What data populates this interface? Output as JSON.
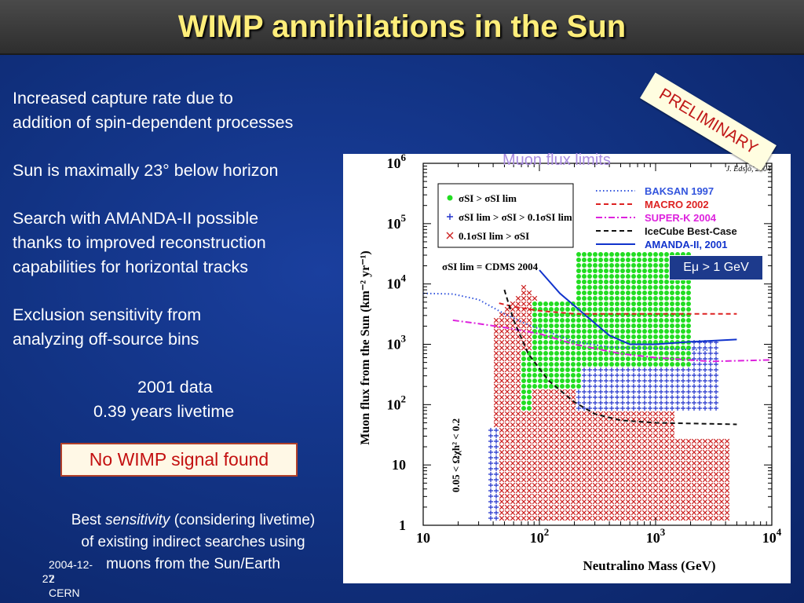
{
  "slide": {
    "title": "WIMP annihilations in the Sun",
    "bullets": [
      [
        "Increased capture rate due to",
        "addition of spin-dependent processes"
      ],
      [
        "Sun is maximally 23° below horizon"
      ],
      [
        "Search with AMANDA-II possible",
        "thanks to improved reconstruction",
        "capabilities for horizontal tracks"
      ],
      [
        "Exclusion sensitivity from",
        "analyzing off-source bins"
      ]
    ],
    "data_period": "2001 data",
    "livetime": "0.39 years livetime",
    "result": "No WIMP signal found",
    "note_prefix": "Best ",
    "note_emph": "sensitivity",
    "note_suffix": " (considering livetime)",
    "note_line2": "of existing indirect searches using",
    "note_line3": "muons from the Sun/Earth",
    "footer_date": "2004-12-2",
    "footer_org": "CERN",
    "page_number": "27",
    "preliminary": "PRELIMINARY",
    "plot_caption": "Muon flux limits",
    "colors": {
      "title": "#ffee7a",
      "background": "#123384",
      "result_text": "#c31010",
      "caption": "#a98be0"
    }
  },
  "chart_data": {
    "type": "scatter",
    "credit": "J. Edsjö, 2004",
    "xlabel": "Neutralino Mass (GeV)",
    "ylabel": "Muon flux from the Sun (km⁻² yr⁻¹)",
    "x_scale": "log",
    "y_scale": "log",
    "xlim": [
      10,
      10000
    ],
    "ylim": [
      1,
      1000000
    ],
    "x_ticks": [
      {
        "v": 10,
        "base": "10",
        "exp": ""
      },
      {
        "v": 100,
        "base": "10",
        "exp": "2"
      },
      {
        "v": 1000,
        "base": "10",
        "exp": "3"
      },
      {
        "v": 10000,
        "base": "10",
        "exp": "4"
      }
    ],
    "y_ticks": [
      {
        "v": 1,
        "base": "1",
        "exp": ""
      },
      {
        "v": 10,
        "base": "10",
        "exp": ""
      },
      {
        "v": 100,
        "base": "10",
        "exp": "2"
      },
      {
        "v": 1000,
        "base": "10",
        "exp": "3"
      },
      {
        "v": 10000,
        "base": "10",
        "exp": "4"
      },
      {
        "v": 100000,
        "base": "10",
        "exp": "5"
      },
      {
        "v": 1000000,
        "base": "10",
        "exp": "6"
      }
    ],
    "model_legend": [
      {
        "marker": "dot",
        "color": "#22dd22",
        "text": "σSI > σSI lim"
      },
      {
        "marker": "plus",
        "color": "#2233cc",
        "text": "σSI lim > σSI > 0.1σSI lim"
      },
      {
        "marker": "cross",
        "color": "#cc2222",
        "text": "0.1σSI lim > σSI"
      }
    ],
    "cdms_label": "σSI lim = CDMS 2004",
    "relic_label": "0.05 < Ωχh² < 0.2",
    "threshold_label": "Eμ > 1 GeV",
    "series": [
      {
        "name": "BAKSAN 1997",
        "color": "#3355dd",
        "dash": "dot",
        "x": [
          10,
          18,
          30,
          50,
          80,
          120,
          200,
          400,
          1000,
          3000
        ],
        "y": [
          7000,
          6800,
          5500,
          3200,
          2100,
          1600,
          1100,
          900,
          850,
          800
        ]
      },
      {
        "name": "MACRO 2002",
        "color": "#dd2222",
        "dash": "dash",
        "x": [
          45,
          60,
          100,
          200,
          500,
          1000,
          3000,
          5000
        ],
        "y": [
          4800,
          4200,
          3600,
          3200,
          3200,
          3200,
          3200,
          3200
        ]
      },
      {
        "name": "SUPER-K 2004",
        "color": "#dd22dd",
        "dash": "dashdot",
        "x": [
          18,
          30,
          50,
          100,
          200,
          500,
          1000,
          3000,
          10000
        ],
        "y": [
          2500,
          2200,
          1900,
          1500,
          1000,
          700,
          600,
          520,
          550
        ]
      },
      {
        "name": "IceCube Best-Case",
        "color": "#111111",
        "dash": "dash",
        "x": [
          50,
          60,
          80,
          120,
          200,
          300,
          500,
          1000,
          3000,
          5000
        ],
        "y": [
          8000,
          2500,
          700,
          250,
          110,
          70,
          55,
          50,
          48,
          47
        ]
      },
      {
        "name": "AMANDA-II, 2001",
        "color": "#1133cc",
        "dash": "solid",
        "x": [
          100,
          150,
          250,
          400,
          600,
          1000,
          2000,
          5000
        ],
        "y": [
          17000,
          7000,
          3000,
          1400,
          1000,
          1000,
          1100,
          1200
        ]
      }
    ]
  }
}
